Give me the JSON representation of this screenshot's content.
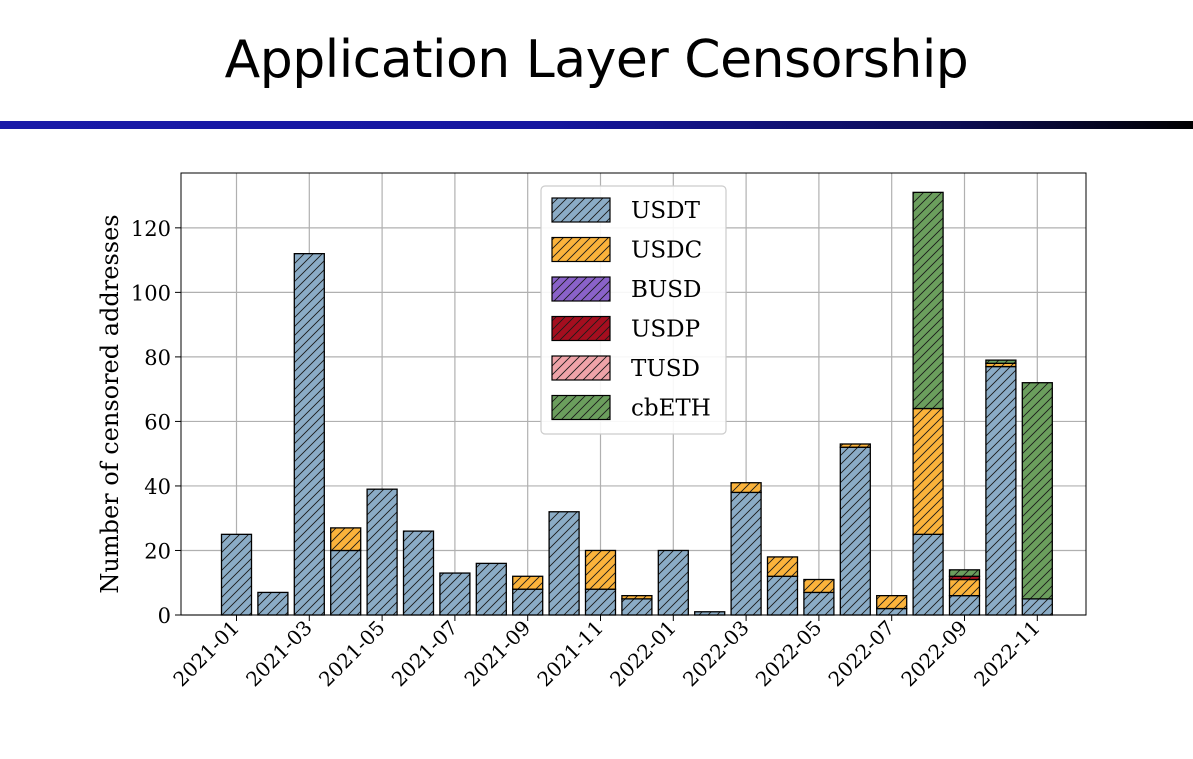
{
  "slide": {
    "title": "Application Layer Censorship"
  },
  "colors": {
    "USDT": "#8bacc6",
    "USDC": "#fbb33b",
    "BUSD": "#8a62c9",
    "USDP": "#a50e1f",
    "TUSD": "#eea3a8",
    "cbETH": "#6b9e5d",
    "rule_start": "#1a1aa8",
    "rule_end": "#000000"
  },
  "chart_data": {
    "type": "bar",
    "stacked": true,
    "title": "",
    "xlabel": "",
    "ylabel": "Number of censored addresses",
    "ylim": [
      0,
      137
    ],
    "yticks": [
      0,
      20,
      40,
      60,
      80,
      100,
      120
    ],
    "grid": true,
    "legend_position": "top-center",
    "hatch": "diagonal",
    "categories": [
      "2021-01",
      "2021-02",
      "2021-03",
      "2021-04",
      "2021-05",
      "2021-06",
      "2021-07",
      "2021-08",
      "2021-09",
      "2021-10",
      "2021-11",
      "2021-12",
      "2022-01",
      "2022-02",
      "2022-03",
      "2022-04",
      "2022-05",
      "2022-06",
      "2022-07",
      "2022-08",
      "2022-09",
      "2022-10",
      "2022-11"
    ],
    "xtick_labels": [
      "2021-01",
      "2021-03",
      "2021-05",
      "2021-07",
      "2021-09",
      "2021-11",
      "2022-01",
      "2022-03",
      "2022-05",
      "2022-07",
      "2022-09",
      "2022-11"
    ],
    "series": [
      {
        "name": "USDT",
        "values": [
          25,
          7,
          112,
          20,
          39,
          26,
          13,
          16,
          8,
          32,
          8,
          5,
          20,
          1,
          38,
          12,
          7,
          52,
          2,
          25,
          6,
          77,
          5
        ]
      },
      {
        "name": "USDC",
        "values": [
          0,
          0,
          0,
          7,
          0,
          0,
          0,
          0,
          4,
          0,
          12,
          1,
          0,
          0,
          3,
          6,
          4,
          1,
          4,
          39,
          5,
          1,
          0
        ]
      },
      {
        "name": "BUSD",
        "values": [
          0,
          0,
          0,
          0,
          0,
          0,
          0,
          0,
          0,
          0,
          0,
          0,
          0,
          0,
          0,
          0,
          0,
          0,
          0,
          0,
          0,
          0,
          0
        ]
      },
      {
        "name": "USDP",
        "values": [
          0,
          0,
          0,
          0,
          0,
          0,
          0,
          0,
          0,
          0,
          0,
          0,
          0,
          0,
          0,
          0,
          0,
          0,
          0,
          0,
          1,
          0,
          0
        ]
      },
      {
        "name": "TUSD",
        "values": [
          0,
          0,
          0,
          0,
          0,
          0,
          0,
          0,
          0,
          0,
          0,
          0,
          0,
          0,
          0,
          0,
          0,
          0,
          0,
          0,
          0,
          0,
          0
        ]
      },
      {
        "name": "cbETH",
        "values": [
          0,
          0,
          0,
          0,
          0,
          0,
          0,
          0,
          0,
          0,
          0,
          0,
          0,
          0,
          0,
          0,
          0,
          0,
          0,
          67,
          2,
          1,
          67
        ]
      }
    ]
  }
}
